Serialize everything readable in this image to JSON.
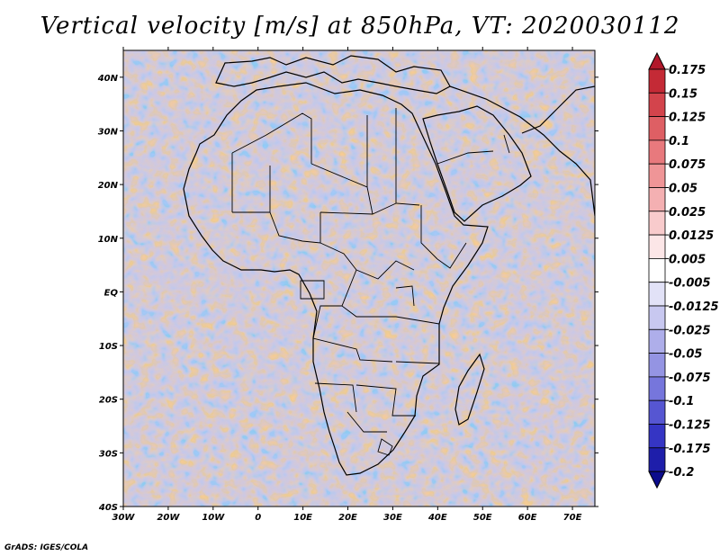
{
  "title": "Vertical velocity [m/s] at 850hPa, VT: 2020030112",
  "credit": "GrADS: IGES/COLA",
  "lat_labels": [
    "40N",
    "30N",
    "20N",
    "10N",
    "EQ",
    "10S",
    "20S",
    "30S",
    "40S"
  ],
  "lon_labels": [
    "30W",
    "20W",
    "10W",
    "0",
    "10E",
    "20E",
    "30E",
    "40E",
    "50E",
    "60E",
    "70E"
  ],
  "map_extent": {
    "lon": [
      -30,
      75
    ],
    "lat": [
      -40,
      45
    ]
  },
  "colorbar": {
    "labels": [
      "0.175",
      "0.15",
      "0.125",
      "0.1",
      "0.075",
      "0.05",
      "0.025",
      "0.0125",
      "0.005",
      "-0.005",
      "-0.0125",
      "-0.025",
      "-0.05",
      "-0.075",
      "-0.1",
      "-0.125",
      "-0.175",
      "-0.2"
    ],
    "colors": [
      "#b2182b",
      "#c42a36",
      "#d3444c",
      "#de5f64",
      "#e8797d",
      "#ef9597",
      "#f4b0b2",
      "#f8cbcc",
      "#fce6e7",
      "#ffffff",
      "#e2e2f7",
      "#c8c8f0",
      "#aeaeea",
      "#9494e3",
      "#7676dc",
      "#5656d2",
      "#3535c4",
      "#1e1eaa",
      "#0c0c8c"
    ]
  }
}
